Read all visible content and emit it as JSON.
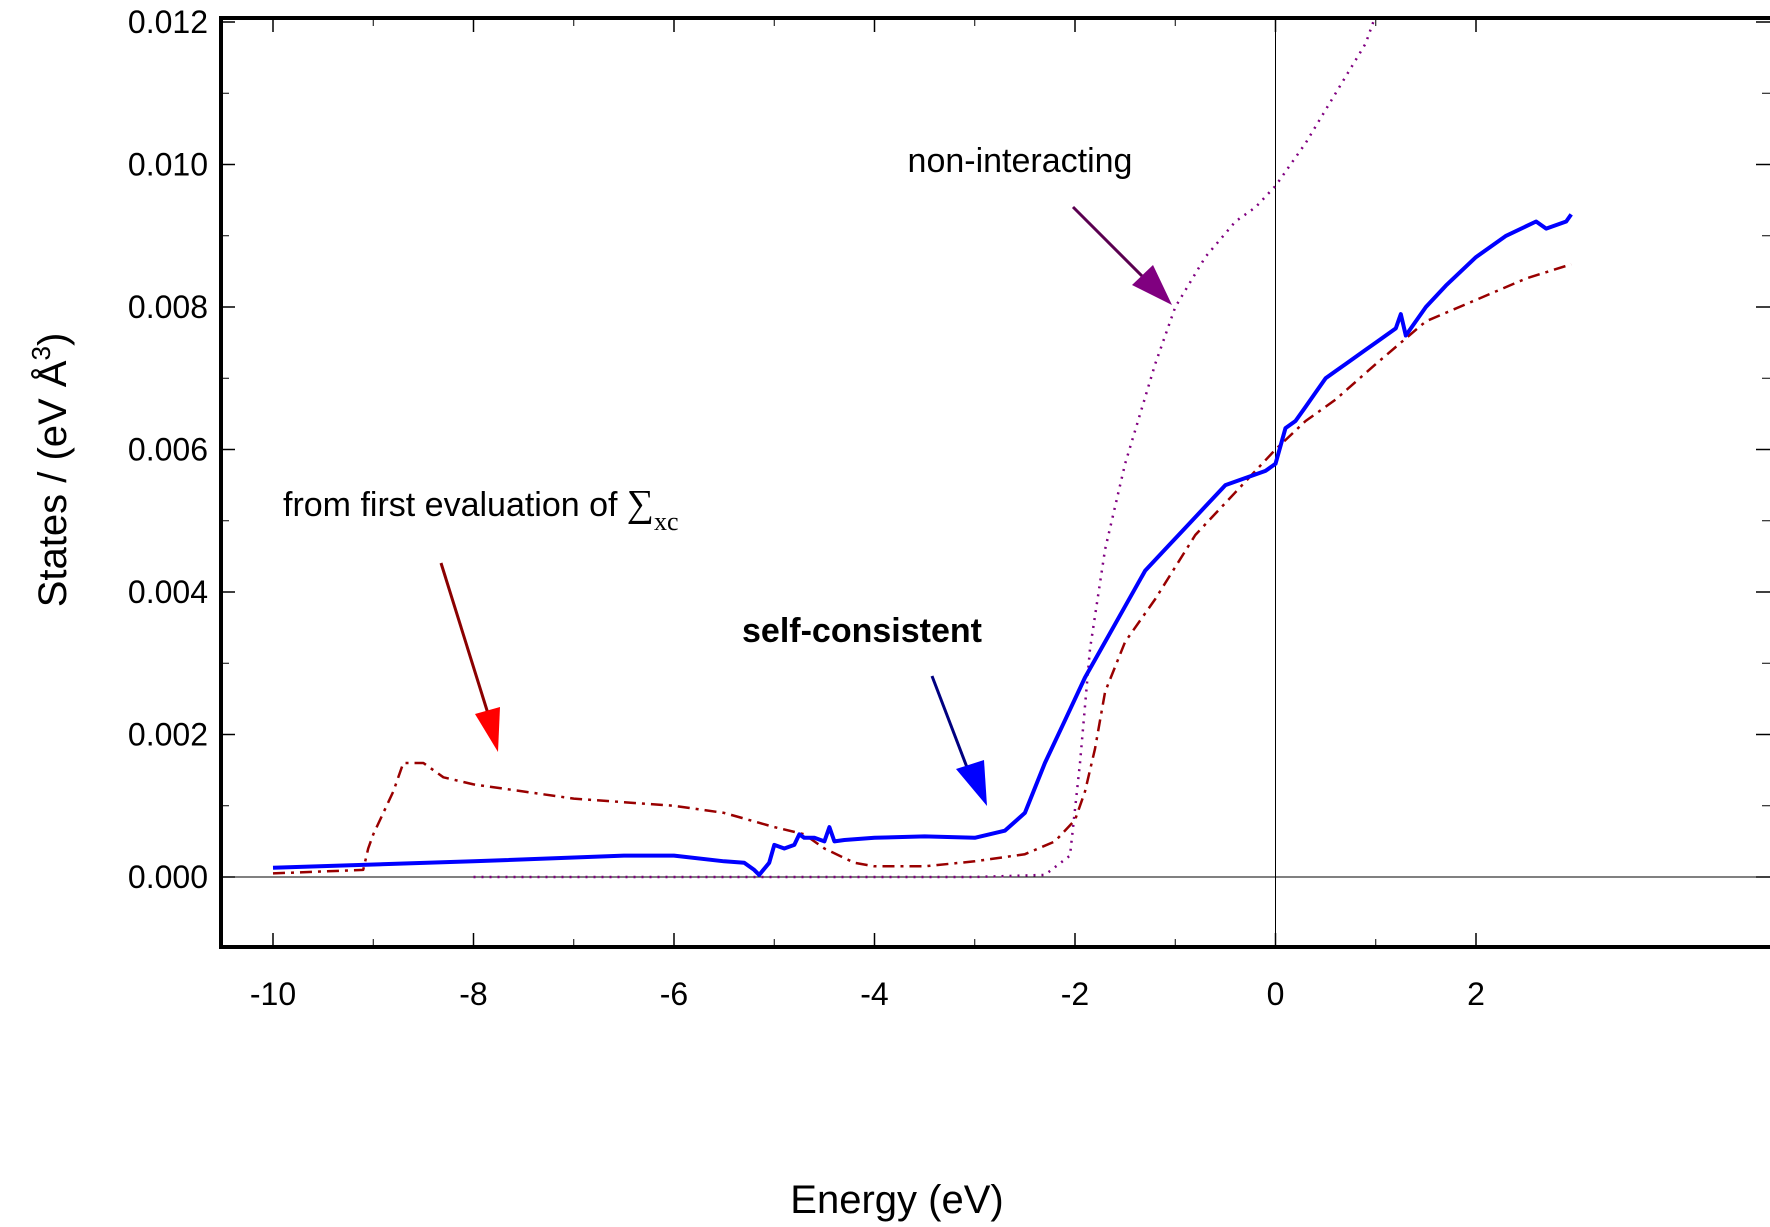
{
  "chart_data": {
    "type": "line",
    "xlabel": "Energy (eV)",
    "ylabel_main": "States / (eV ",
    "ylabel_unit": "Å",
    "ylabel_exp": "3",
    "ylabel_close": ")",
    "xlim": [
      -10.5,
      2.95
    ],
    "ylim": [
      -0.001,
      0.012
    ],
    "xticks": [
      -10,
      -8,
      -6,
      -4,
      -2,
      0,
      2
    ],
    "xtick_labels": [
      "-10",
      "-8",
      "-6",
      "-4",
      "-2",
      "0",
      "2"
    ],
    "yticks": [
      0.0,
      0.002,
      0.004,
      0.006,
      0.008,
      0.01,
      0.012
    ],
    "ytick_labels": [
      "0.000",
      "0.002",
      "0.004",
      "0.006",
      "0.008",
      "0.010",
      "0.012"
    ],
    "reference_lines": {
      "x": 0,
      "y": 0
    },
    "series": [
      {
        "key": "non_interacting",
        "color": "#800080",
        "style": "dotted",
        "x": [
          -8.0,
          -5.0,
          -3.0,
          -2.3,
          -2.05,
          -1.95,
          -1.85,
          -1.7,
          -1.5,
          -1.2,
          -1.0,
          -0.7,
          -0.4,
          -0.2,
          0.0,
          0.3,
          0.6,
          0.9,
          1.0
        ],
        "y": [
          0.0,
          0.0,
          0.0,
          3e-05,
          0.0003,
          0.0016,
          0.0032,
          0.0046,
          0.0058,
          0.0072,
          0.008,
          0.0087,
          0.0092,
          0.0094,
          0.0097,
          0.0103,
          0.011,
          0.0117,
          0.0121
        ]
      },
      {
        "key": "self_consistent",
        "color": "#0000ff",
        "style": "solid",
        "x": [
          -10.0,
          -8.0,
          -6.5,
          -6.0,
          -5.5,
          -5.3,
          -5.2,
          -5.15,
          -5.05,
          -5.0,
          -4.9,
          -4.8,
          -4.75,
          -4.7,
          -4.6,
          -4.5,
          -4.45,
          -4.4,
          -4.3,
          -4.0,
          -3.5,
          -3.0,
          -2.7,
          -2.5,
          -2.3,
          -2.1,
          -1.9,
          -1.7,
          -1.5,
          -1.3,
          -1.1,
          -0.9,
          -0.7,
          -0.5,
          -0.3,
          -0.1,
          0.0,
          0.1,
          0.2,
          0.3,
          0.4,
          0.5,
          0.6,
          0.7,
          0.8,
          0.9,
          1.0,
          1.1,
          1.2,
          1.25,
          1.3,
          1.5,
          1.7,
          2.0,
          2.3,
          2.6,
          2.7,
          2.9,
          2.95
        ],
        "y": [
          0.00013,
          0.00022,
          0.0003,
          0.0003,
          0.00022,
          0.0002,
          0.0001,
          3e-05,
          0.0002,
          0.00045,
          0.0004,
          0.00045,
          0.0006,
          0.00055,
          0.00055,
          0.0005,
          0.0007,
          0.0005,
          0.00052,
          0.00055,
          0.00057,
          0.00055,
          0.00065,
          0.0009,
          0.0016,
          0.0022,
          0.0028,
          0.0033,
          0.0038,
          0.0043,
          0.0046,
          0.0049,
          0.0052,
          0.0055,
          0.0056,
          0.0057,
          0.0058,
          0.0063,
          0.0064,
          0.0066,
          0.0068,
          0.007,
          0.0071,
          0.0072,
          0.0073,
          0.0074,
          0.0075,
          0.0076,
          0.0077,
          0.0079,
          0.0076,
          0.008,
          0.0083,
          0.0087,
          0.009,
          0.0092,
          0.0091,
          0.0092,
          0.0093
        ]
      },
      {
        "key": "first_evaluation",
        "color": "#990000",
        "style": "dashdot",
        "x": [
          -10.0,
          -9.1,
          -9.05,
          -9.0,
          -8.8,
          -8.7,
          -8.5,
          -8.3,
          -8.0,
          -7.5,
          -7.0,
          -6.0,
          -5.5,
          -5.0,
          -4.7,
          -4.5,
          -4.2,
          -4.0,
          -3.5,
          -3.0,
          -2.5,
          -2.2,
          -2.0,
          -1.9,
          -1.8,
          -1.7,
          -1.5,
          -1.2,
          -0.8,
          -0.4,
          0.0,
          0.3,
          0.6,
          1.0,
          1.5,
          2.0,
          2.5,
          2.95
        ],
        "y": [
          5e-05,
          0.0001,
          0.0004,
          0.0006,
          0.0012,
          0.0016,
          0.0016,
          0.0014,
          0.0013,
          0.0012,
          0.0011,
          0.001,
          0.0009,
          0.0007,
          0.0006,
          0.0004,
          0.0002,
          0.00015,
          0.00015,
          0.00022,
          0.00032,
          0.0005,
          0.0008,
          0.0012,
          0.0018,
          0.0026,
          0.0033,
          0.0039,
          0.0048,
          0.0054,
          0.006,
          0.0064,
          0.0067,
          0.0072,
          0.0078,
          0.0081,
          0.0084,
          0.0086
        ]
      }
    ],
    "annotations": [
      {
        "key": "non_interacting",
        "text": "non-interacting",
        "bold": false,
        "color": "#800080"
      },
      {
        "key": "first_evaluation",
        "text": "from first evaluation of ",
        "symbol": "∑",
        "subscript": "xc",
        "bold": false,
        "color": "#ff0000"
      },
      {
        "key": "self_consistent",
        "text": "self-consistent",
        "bold": true,
        "color": "#0000ff"
      }
    ]
  }
}
